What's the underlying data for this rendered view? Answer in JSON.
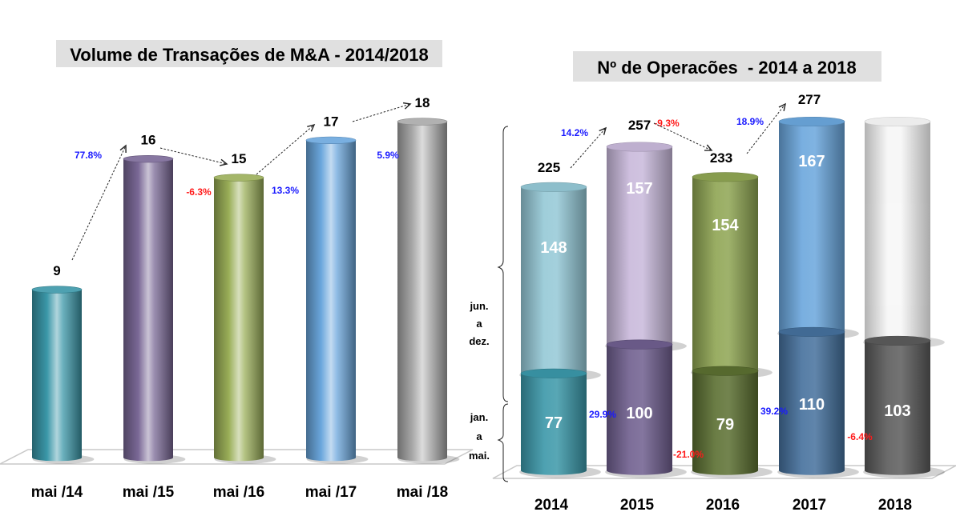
{
  "chart_data": [
    {
      "id": "volume",
      "type": "bar",
      "style": "3d-cylinder",
      "title": "Volume de Transações de M&A - 2014/2018",
      "xlabel": "",
      "ylabel": "",
      "ylim": [
        0,
        20
      ],
      "grid": false,
      "categories": [
        "mai /14",
        "mai /15",
        "mai /16",
        "mai /17",
        "mai /18"
      ],
      "values": [
        9,
        16,
        15,
        17,
        18
      ],
      "colors": [
        "#3a97a8",
        "#7a6896",
        "#9aae58",
        "#6aa6dc",
        "#a8a8a8"
      ],
      "changes": [
        {
          "from": 0,
          "to": 1,
          "label": "77.8%",
          "color": "#1a1aff"
        },
        {
          "from": 1,
          "to": 2,
          "label": "-6.3%",
          "color": "#ff1a1a"
        },
        {
          "from": 2,
          "to": 3,
          "label": "13.3%",
          "color": "#1a1aff"
        },
        {
          "from": 3,
          "to": 4,
          "label": "5.9%",
          "color": "#1a1aff"
        }
      ]
    },
    {
      "id": "operacoes",
      "type": "bar",
      "style": "3d-cylinder-stacked",
      "title": "Nº de Operacões  - 2014 a 2018",
      "xlabel": "",
      "ylabel": "",
      "ylim": [
        0,
        300
      ],
      "grid": false,
      "categories": [
        "2014",
        "2015",
        "2016",
        "2017",
        "2018"
      ],
      "series": [
        {
          "name": "jan. a mai.",
          "values": [
            77,
            100,
            79,
            110,
            103
          ],
          "colors": [
            "#3a97a8",
            "#6e5e8e",
            "#5a6e30",
            "#44709c",
            "#5a5a5a"
          ]
        },
        {
          "name": "jun. a dez.",
          "values": [
            148,
            157,
            154,
            167,
            null
          ],
          "colors": [
            "#94c8d6",
            "#c8b8da",
            "#8ea452",
            "#6aa6dc",
            "#f6f6f6"
          ]
        }
      ],
      "totals": [
        225,
        257,
        233,
        277,
        null
      ],
      "total_changes": [
        {
          "from": 0,
          "to": 1,
          "label": "14.2%",
          "color": "#1a1aff"
        },
        {
          "from": 1,
          "to": 2,
          "label": "-9.3%",
          "color": "#ff1a1a"
        },
        {
          "from": 2,
          "to": 3,
          "label": "18.9%",
          "color": "#1a1aff"
        }
      ],
      "base_changes": [
        {
          "from": 0,
          "to": 1,
          "label": "29.9%",
          "color": "#1a1aff"
        },
        {
          "from": 1,
          "to": 2,
          "label": "-21.0%",
          "color": "#ff1a1a"
        },
        {
          "from": 2,
          "to": 3,
          "label": "39.2%",
          "color": "#1a1aff"
        },
        {
          "from": 3,
          "to": 4,
          "label": "-6.4%",
          "color": "#ff1a1a"
        }
      ],
      "side_labels": {
        "upper": [
          "jun.",
          "a",
          "dez."
        ],
        "lower": [
          "jan.",
          "a",
          "mai."
        ]
      }
    }
  ]
}
